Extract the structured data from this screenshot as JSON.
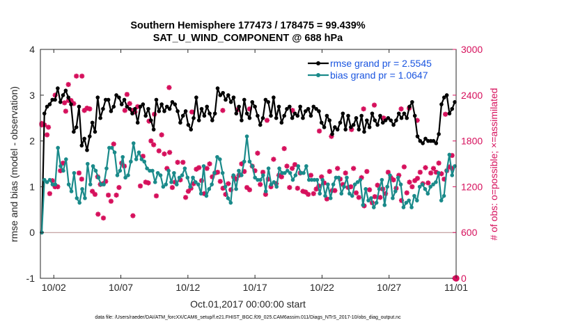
{
  "chart_data": {
    "type": "line",
    "title": "Southern Hemisphere 177473 / 178475 = 99.439%",
    "subtitle": "SAT_U_WIND_COMPONENT @ 688 hPa",
    "xlabel": "Oct.01,2017 00:00:00 start",
    "ylabel": "rmse and bias (model - observation)",
    "ylabel_right": "# of obs: o=possible; ×=assimilated",
    "ylim": [
      -1,
      4
    ],
    "ylim_right": [
      0,
      3000
    ],
    "xlim": [
      0.5,
      31.5
    ],
    "x_ticks": [
      1.5,
      6.5,
      11.5,
      16.5,
      21.5,
      26.5,
      31.5
    ],
    "x_tick_labels": [
      "10/02",
      "10/07",
      "10/12",
      "10/17",
      "10/22",
      "10/27",
      "11/01"
    ],
    "y_ticks": [
      -1,
      0,
      1,
      2,
      3,
      4
    ],
    "y_ticks_right": [
      0,
      600,
      1200,
      1800,
      2400,
      3000
    ],
    "zero_line": 0,
    "legend": [
      "rmse grand pr = 2.5545",
      "bias grand pr = 1.0647"
    ],
    "series": [
      {
        "name": "rmse",
        "color": "#000000",
        "axis": "left",
        "values": [
          0.0,
          2.6,
          2.75,
          2.8,
          2.9,
          2.9,
          3.15,
          2.85,
          3.0,
          3.1,
          2.95,
          2.8,
          2.2,
          2.3,
          2.75,
          1.9,
          2.05,
          1.8,
          2.1,
          2.4,
          2.2,
          2.95,
          2.5,
          2.7,
          2.9,
          2.9,
          2.65,
          2.75,
          3.0,
          2.95,
          2.8,
          2.9,
          2.75,
          2.7,
          2.6,
          2.7,
          2.4,
          2.75,
          2.8,
          2.55,
          2.7,
          2.45,
          2.25,
          2.9,
          2.65,
          2.8,
          2.65,
          2.75,
          2.7,
          2.85,
          2.8,
          2.65,
          2.4,
          2.55,
          2.65,
          2.35,
          2.25,
          2.5,
          2.95,
          2.45,
          2.7,
          2.55,
          2.75,
          2.6,
          2.45,
          2.6,
          3.15,
          3.0,
          3.05,
          2.9,
          3.0,
          2.85,
          2.95,
          2.6,
          2.75,
          2.45,
          2.9,
          2.6,
          2.5,
          2.85,
          2.75,
          2.55,
          2.35,
          2.5,
          2.9,
          2.85,
          2.55,
          2.95,
          2.5,
          2.75,
          2.4,
          2.55,
          2.7,
          2.75,
          2.5,
          2.6,
          2.55,
          2.75,
          2.5,
          2.65,
          2.7,
          2.55,
          2.75,
          2.7,
          2.65,
          2.4,
          2.3,
          2.55,
          2.45,
          2.15,
          2.3,
          2.25,
          2.4,
          2.6,
          2.25,
          2.55,
          2.3,
          2.35,
          2.5,
          2.25,
          2.55,
          2.2,
          2.45,
          2.3,
          2.6,
          2.45,
          2.35,
          2.55,
          2.4,
          2.45,
          2.5,
          2.45,
          2.35,
          2.45,
          2.6,
          2.5,
          2.6,
          2.5,
          2.75,
          2.85,
          2.55,
          2.1,
          2.0,
          1.95,
          2.05,
          2.0,
          2.0,
          2.0,
          1.95,
          2.15,
          2.8,
          2.95,
          3.0,
          2.6,
          2.7,
          2.85
        ]
      },
      {
        "name": "bias",
        "color": "#1a8a8a",
        "axis": "left",
        "values": [
          0.0,
          1.15,
          1.1,
          1.15,
          1.05,
          1.05,
          1.85,
          1.45,
          1.35,
          1.6,
          1.05,
          0.9,
          1.3,
          0.75,
          0.65,
          0.95,
          0.75,
          1.5,
          1.05,
          1.45,
          1.35,
          1.2,
          1.05,
          1.05,
          1.4,
          1.85,
          1.85,
          1.75,
          1.25,
          1.35,
          1.65,
          1.2,
          1.25,
          1.55,
          1.95,
          1.6,
          1.75,
          1.6,
          1.55,
          1.4,
          1.35,
          1.35,
          1.1,
          1.3,
          1.25,
          1.0,
          1.05,
          1.35,
          1.1,
          1.3,
          1.05,
          1.2,
          1.25,
          1.4,
          1.2,
          1.0,
          1.2,
          1.1,
          1.05,
          0.85,
          1.45,
          0.8,
          0.95,
          1.05,
          1.3,
          1.65,
          1.6,
          1.3,
          1.0,
          0.75,
          0.65,
          1.25,
          0.95,
          1.35,
          1.25,
          1.55,
          2.1,
          1.55,
          1.45,
          1.2,
          1.15,
          1.15,
          1.25,
          0.9,
          1.4,
          1.05,
          1.1,
          1.0,
          1.4,
          1.3,
          1.3,
          1.35,
          1.3,
          1.15,
          1.25,
          1.45,
          1.3,
          1.3,
          1.45,
          1.15,
          1.15,
          1.15,
          1.15,
          0.85,
          1.15,
          0.8,
          1.05,
          0.75,
          1.05,
          1.2,
          1.2,
          0.85,
          1.0,
          1.2,
          0.85,
          0.8,
          1.05,
          1.1,
          1.15,
          0.6,
          0.95,
          0.7,
          0.75,
          0.55,
          0.65,
          0.95,
          1.15,
          0.6,
          1.0,
          1.25,
          0.75,
          0.9,
          1.2,
          1.05,
          0.55,
          0.65,
          0.7,
          0.55,
          0.8,
          0.7,
          1.0,
          1.05,
          0.95,
          0.85,
          1.0,
          1.05,
          1.1,
          1.3,
          0.7,
          0.8,
          1.35,
          1.7,
          1.25,
          1.45
        ]
      },
      {
        "name": "# assimilated",
        "color": "#d6105c",
        "axis": "right",
        "marker": "asterisk",
        "values": [
          2030,
          2010,
          1880,
          1110,
          1280,
          1200,
          1200,
          1410,
          1510,
          2190,
          2540,
          2330,
          2290,
          2650,
          1380,
          1300,
          2200,
          2230,
          2220,
          1140,
          1100,
          1330,
          1230,
          1240,
          1270,
          1090,
          1010,
          1760,
          1090,
          1190,
          1510,
          1470,
          2410,
          2290,
          2200,
          2180,
          2250,
          1210,
          1600,
          1260,
          1250,
          1800,
          1750,
          1080,
          1670,
          1880,
          1630,
          1440,
          1650,
          1190,
          1260,
          1520,
          1290,
          1520,
          1060,
          1140,
          1180,
          1240,
          1430,
          1450,
          1280,
          1110,
          1440,
          1500,
          1330,
          1380,
          1390,
          1270,
          1180,
          1100,
          1240,
          1160,
          1330,
          1300,
          1350,
          1500,
          1400,
          1190,
          1160,
          1470,
          1410,
          1640,
          1230,
          1390,
          1100,
          1300,
          1200,
          1560,
          1240,
          1350,
          1330,
          1700,
          1470,
          1190,
          1440,
          1490,
          1180,
          1380,
          1140,
          1130,
          1100,
          1350,
          1110,
          1170,
          1210,
          1330,
          1250,
          1040,
          1400,
          1150,
          1150,
          1440,
          1300,
          1230,
          1380,
          1190,
          1200,
          1440,
          1120,
          1060,
          1320,
          950,
          1400,
          1160,
          990,
          1070,
          1220,
          1060,
          1170,
          1110,
          1390,
          1320,
          1290,
          1180,
          1350,
          1020,
          1460,
          1120,
          1260,
          1200,
          1280,
          1310,
          1390,
          1240,
          1450,
          1250,
          1380,
          1440,
          1390,
          1510,
          1370,
          1300,
          1410,
          1460,
          1440,
          0
        ]
      },
      {
        "name": "# assimilated (upper cluster)",
        "color": "#d6105c",
        "axis": "right",
        "marker": "asterisk",
        "x": [
          0.6,
          1.1,
          1.6,
          2.3,
          2.6,
          3.6,
          4.8,
          5.2,
          6.8,
          7.4,
          8.6,
          9.0,
          10.1,
          11.8,
          14.1,
          15.2,
          16.1,
          17.4,
          19.3,
          21.3,
          22.2,
          23.7,
          24.6,
          25.4,
          26.1,
          27.4,
          28.0,
          28.6,
          30.7,
          31.2
        ],
        "values": [
          2010,
          1980,
          2400,
          2300,
          2330,
          2650,
          840,
          790,
          2200,
          820,
          2060,
          2150,
          2500,
          2180,
          2200,
          2210,
          2220,
          2070,
          2200,
          1930,
          1860,
          1950,
          2220,
          2270,
          2100,
          2220,
          2230,
          2070,
          2150,
          1610
        ]
      },
      {
        "name": "# possible",
        "color": "#d6105c",
        "axis": "right",
        "marker": "circle",
        "x": [
          31.5
        ],
        "values": [
          0
        ]
      }
    ]
  },
  "footer": "data file: /Users/raeder/DAI/ATM_forcXX/CAM6_setup/f.e21.FHIST_BGC.f09_025.CAM6assim.011/Diags_NTrS_2017-10/obs_diag_output.nc"
}
